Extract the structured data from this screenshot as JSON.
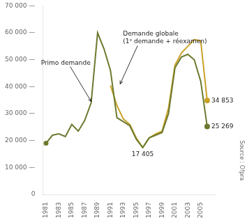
{
  "chart_data": {
    "type": "line",
    "x": [
      1981,
      1982,
      1983,
      1984,
      1985,
      1986,
      1987,
      1988,
      1989,
      1990,
      1991,
      1992,
      1993,
      1994,
      1995,
      1996,
      1997,
      1998,
      1999,
      2000,
      2001,
      2002,
      2003,
      2004,
      2005,
      2006
    ],
    "series": [
      {
        "color": "#6b7a2e",
        "values": [
          19000,
          22000,
          22500,
          21500,
          26000,
          23500,
          27500,
          34000,
          60000,
          54000,
          46000,
          28500,
          27000,
          25500,
          20500,
          17405,
          21000,
          22000,
          23000,
          30000,
          47000,
          51000,
          52000,
          50000,
          42000,
          25269
        ]
      },
      {
        "color": "#c9a227",
        "values": [
          null,
          null,
          null,
          null,
          null,
          null,
          null,
          null,
          null,
          null,
          40500,
          33000,
          28000,
          26000,
          21000,
          17405,
          21000,
          22500,
          23500,
          32000,
          48000,
          52500,
          55000,
          57500,
          57000,
          34853
        ]
      }
    ],
    "xlim": [
      1980.5,
      2007.2
    ],
    "xticks": [
      1981,
      1983,
      1985,
      1987,
      1989,
      1991,
      1993,
      1995,
      1997,
      1999,
      2001,
      2003,
      2005
    ],
    "ylim": [
      0,
      70000
    ],
    "yticks": [
      0,
      {
        "value": 10000,
        "label": "10 000 —"
      },
      {
        "value": 20000,
        "label": "20 000 —"
      },
      {
        "value": 30000,
        "label": "30 000 —"
      },
      {
        "value": 40000,
        "label": "40 000 —"
      },
      {
        "value": 50000,
        "label": "50 000 —"
      },
      {
        "value": 60000,
        "label": "60 000 —"
      },
      {
        "value": 70000,
        "label": "70 000 —"
      }
    ],
    "grid": false,
    "annotations": [
      {
        "text": "Primo demande",
        "x": 1988,
        "y": 34000
      },
      {
        "text": "Demande globale\n(1ᵒ demande + réexamen)",
        "x": 1992.5,
        "y": 40500
      },
      {
        "text": "17 405",
        "x": 1996,
        "y": 17405
      },
      {
        "text": "34 853",
        "x": 2006,
        "y": 34853
      },
      {
        "text": "25 269",
        "x": 2006,
        "y": 25269
      },
      {
        "text": "Source : Ofpra"
      }
    ]
  }
}
